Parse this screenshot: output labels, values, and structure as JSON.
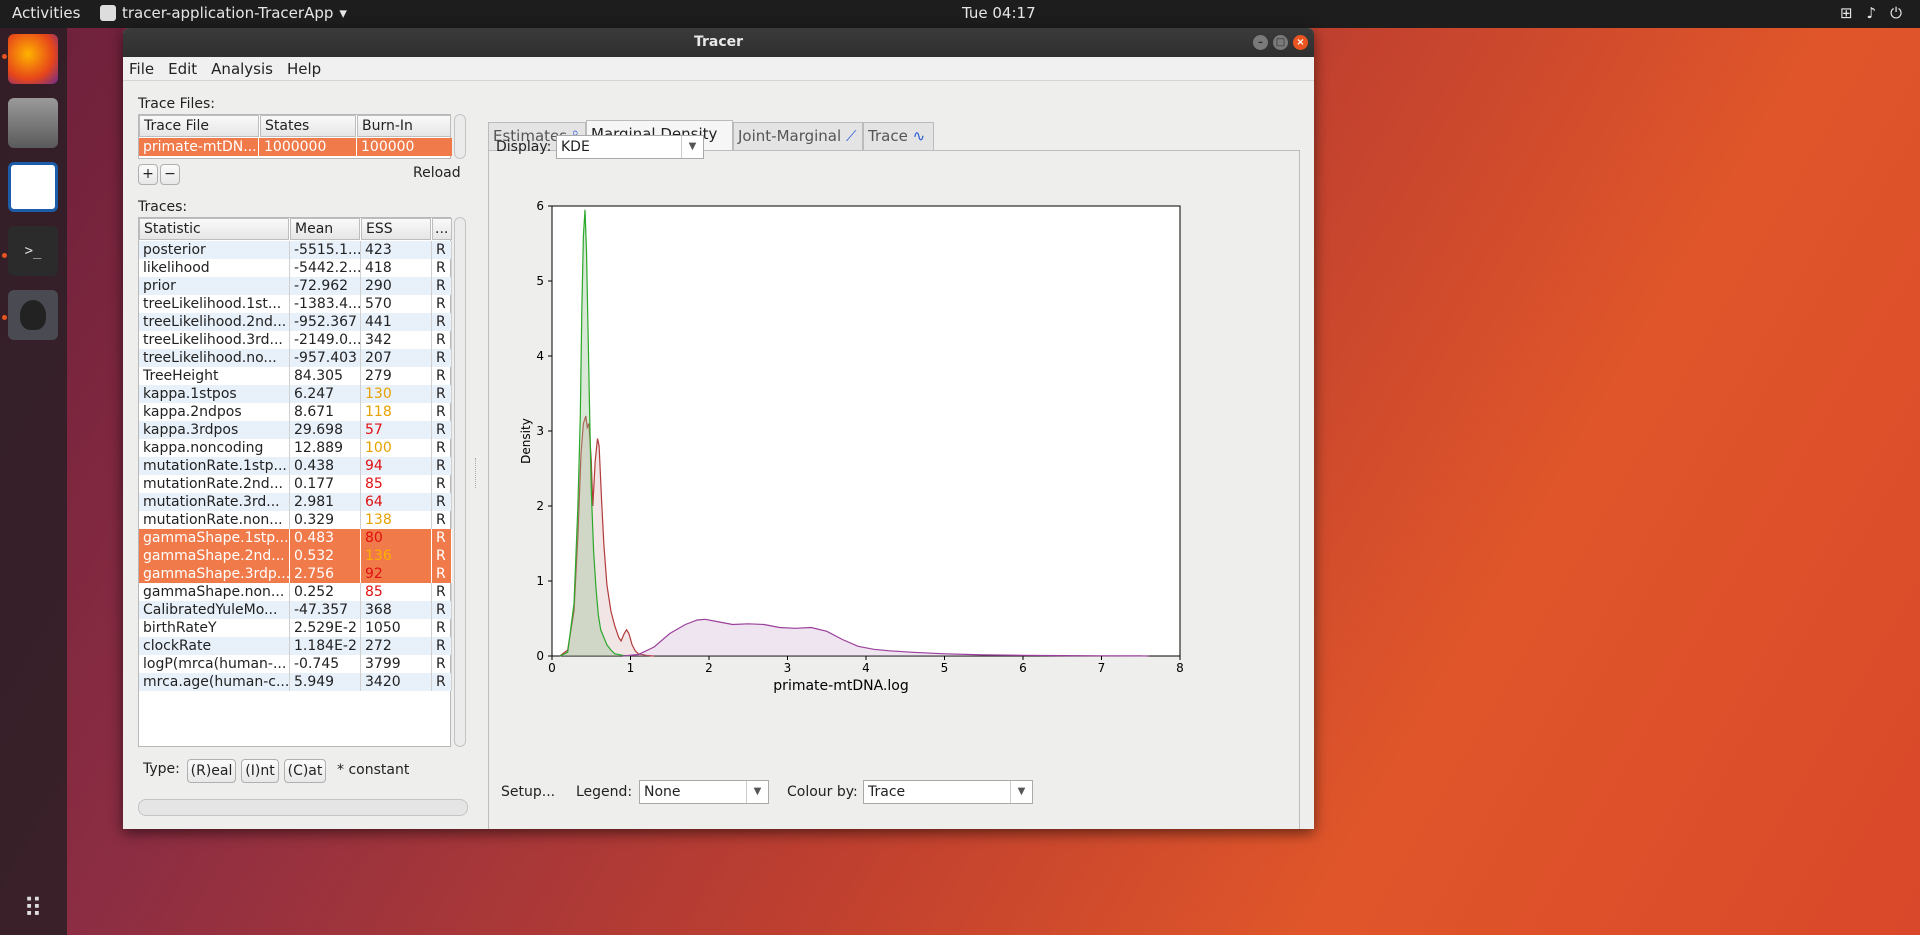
{
  "topbar": {
    "activities": "Activities",
    "app": "tracer-application-TracerApp",
    "app_arrow": "▾",
    "clock": "Tue 04:17",
    "tray": [
      "network-icon",
      "volume-icon",
      "power-icon"
    ]
  },
  "window": {
    "title": "Tracer"
  },
  "menu": [
    "File",
    "Edit",
    "Analysis",
    "Help"
  ],
  "trace_files": {
    "label": "Trace Files:",
    "columns": [
      "Trace File",
      "States",
      "Burn-In"
    ],
    "rows": [
      [
        "primate-mtDN...",
        "1000000",
        "100000"
      ]
    ],
    "add": "+",
    "remove": "−",
    "reload": "Reload"
  },
  "traces": {
    "label": "Traces:",
    "columns": [
      "Statistic",
      "Mean",
      "ESS",
      "..."
    ],
    "rows": [
      {
        "s": "posterior",
        "m": "-5515.1...",
        "e": "423",
        "t": "R",
        "c": "#222"
      },
      {
        "s": "likelihood",
        "m": "-5442.2...",
        "e": "418",
        "t": "R",
        "c": "#222"
      },
      {
        "s": "prior",
        "m": "-72.962",
        "e": "290",
        "t": "R",
        "c": "#222"
      },
      {
        "s": "treeLikelihood.1st...",
        "m": "-1383.4...",
        "e": "570",
        "t": "R",
        "c": "#222"
      },
      {
        "s": "treeLikelihood.2nd...",
        "m": "-952.367",
        "e": "441",
        "t": "R",
        "c": "#222"
      },
      {
        "s": "treeLikelihood.3rd...",
        "m": "-2149.0...",
        "e": "342",
        "t": "R",
        "c": "#222"
      },
      {
        "s": "treeLikelihood.no...",
        "m": "-957.403",
        "e": "207",
        "t": "R",
        "c": "#222"
      },
      {
        "s": "TreeHeight",
        "m": "84.305",
        "e": "279",
        "t": "R",
        "c": "#222"
      },
      {
        "s": "kappa.1stpos",
        "m": "6.247",
        "e": "130",
        "t": "R",
        "c": "#e8a000"
      },
      {
        "s": "kappa.2ndpos",
        "m": "8.671",
        "e": "118",
        "t": "R",
        "c": "#e8a000"
      },
      {
        "s": "kappa.3rdpos",
        "m": "29.698",
        "e": "57",
        "t": "R",
        "c": "#e01010"
      },
      {
        "s": "kappa.noncoding",
        "m": "12.889",
        "e": "100",
        "t": "R",
        "c": "#e8a000"
      },
      {
        "s": "mutationRate.1stp...",
        "m": "0.438",
        "e": "94",
        "t": "R",
        "c": "#e01010"
      },
      {
        "s": "mutationRate.2nd...",
        "m": "0.177",
        "e": "85",
        "t": "R",
        "c": "#e01010"
      },
      {
        "s": "mutationRate.3rd...",
        "m": "2.981",
        "e": "64",
        "t": "R",
        "c": "#e01010"
      },
      {
        "s": "mutationRate.non...",
        "m": "0.329",
        "e": "138",
        "t": "R",
        "c": "#e8a000"
      },
      {
        "s": "gammaShape.1stp...",
        "m": "0.483",
        "e": "80",
        "t": "R",
        "c": "#e01010",
        "sel": true
      },
      {
        "s": "gammaShape.2nd...",
        "m": "0.532",
        "e": "136",
        "t": "R",
        "c": "#ffb000",
        "sel": true
      },
      {
        "s": "gammaShape.3rdp...",
        "m": "2.756",
        "e": "92",
        "t": "R",
        "c": "#e01010",
        "sel": true
      },
      {
        "s": "gammaShape.non...",
        "m": "0.252",
        "e": "85",
        "t": "R",
        "c": "#e01010"
      },
      {
        "s": "CalibratedYuleMo...",
        "m": "-47.357",
        "e": "368",
        "t": "R",
        "c": "#222"
      },
      {
        "s": "birthRateY",
        "m": "2.529E-2",
        "e": "1050",
        "t": "R",
        "c": "#222"
      },
      {
        "s": "clockRate",
        "m": "1.184E-2",
        "e": "272",
        "t": "R",
        "c": "#222"
      },
      {
        "s": "logP(mrca(human-...",
        "m": "-0.745",
        "e": "3799",
        "t": "R",
        "c": "#222"
      },
      {
        "s": "mrca.age(human-c...",
        "m": "5.949",
        "e": "3420",
        "t": "R",
        "c": "#222"
      }
    ]
  },
  "type_bar": {
    "label": "Type:",
    "real": "(R)eal",
    "int": "(I)nt",
    "cat": "(C)at",
    "constant": "* constant"
  },
  "tabs": [
    "Estimates",
    "Marginal Density",
    "Joint-Marginal",
    "Trace"
  ],
  "display": {
    "label": "Display:",
    "value": "KDE"
  },
  "bottom": {
    "setup": "Setup...",
    "legend_label": "Legend:",
    "legend_value": "None",
    "colour_label": "Colour by:",
    "colour_value": "Trace"
  },
  "chart_data": {
    "type": "area",
    "xlabel": "primate-mtDNA.log",
    "ylabel": "Density",
    "xlim": [
      0,
      8
    ],
    "ylim": [
      0,
      6
    ],
    "xticks": [
      "0",
      "1",
      "2",
      "3",
      "4",
      "5",
      "6",
      "7",
      "8"
    ],
    "yticks": [
      "0",
      "1",
      "2",
      "3",
      "4",
      "5",
      "6"
    ],
    "series": [
      {
        "name": "gammaShape.1stpos",
        "color": "#b23a3a",
        "fill": "rgba(200,150,150,0.25)",
        "x": [
          0.1,
          0.2,
          0.28,
          0.33,
          0.37,
          0.4,
          0.43,
          0.45,
          0.47,
          0.5,
          0.52,
          0.55,
          0.58,
          0.6,
          0.63,
          0.66,
          0.7,
          0.75,
          0.8,
          0.85,
          0.88,
          0.92,
          0.95,
          0.98,
          1.02,
          1.06,
          1.1,
          1.2,
          1.3
        ],
        "y": [
          0,
          0.08,
          0.6,
          1.6,
          2.7,
          3.1,
          3.2,
          3.05,
          3.1,
          2.6,
          2.0,
          2.6,
          2.9,
          2.8,
          2.1,
          1.5,
          0.95,
          0.6,
          0.4,
          0.25,
          0.2,
          0.3,
          0.35,
          0.3,
          0.15,
          0.07,
          0.03,
          0.01,
          0
        ]
      },
      {
        "name": "gammaShape.2ndpos",
        "color": "#2aa82a",
        "fill": "rgba(150,190,140,0.35)",
        "x": [
          0.1,
          0.2,
          0.28,
          0.33,
          0.36,
          0.38,
          0.4,
          0.42,
          0.44,
          0.46,
          0.48,
          0.5,
          0.53,
          0.56,
          0.59,
          0.62,
          0.66,
          0.7,
          0.75,
          0.8,
          0.9,
          1.0
        ],
        "y": [
          0,
          0.05,
          0.7,
          2.0,
          3.2,
          4.6,
          5.6,
          5.95,
          5.4,
          4.3,
          3.2,
          2.2,
          1.4,
          0.9,
          0.55,
          0.35,
          0.25,
          0.15,
          0.08,
          0.03,
          0.01,
          0
        ]
      },
      {
        "name": "gammaShape.3rdpos",
        "color": "#9b3f9b",
        "fill": "rgba(190,150,200,0.25)",
        "x": [
          0.9,
          1.1,
          1.3,
          1.5,
          1.7,
          1.85,
          1.95,
          2.1,
          2.3,
          2.5,
          2.7,
          2.9,
          3.1,
          3.3,
          3.5,
          3.7,
          3.9,
          4.1,
          4.3,
          4.6,
          5.0,
          5.5,
          6.0,
          6.5,
          7.0,
          7.5,
          7.6
        ],
        "y": [
          0,
          0.02,
          0.12,
          0.3,
          0.42,
          0.48,
          0.49,
          0.46,
          0.42,
          0.43,
          0.42,
          0.38,
          0.37,
          0.38,
          0.33,
          0.22,
          0.13,
          0.09,
          0.07,
          0.05,
          0.03,
          0.015,
          0.01,
          0.005,
          0.003,
          0.001,
          0
        ]
      }
    ]
  }
}
